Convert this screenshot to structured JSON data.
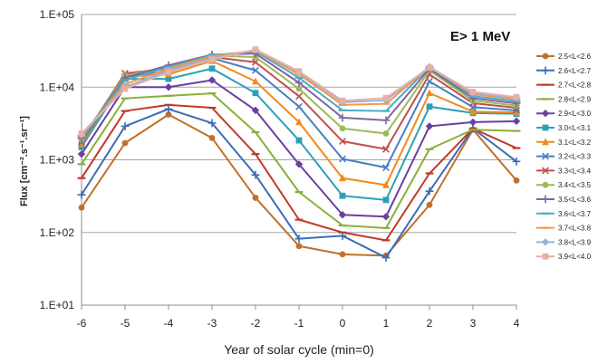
{
  "chart_data": {
    "type": "line",
    "title": "",
    "annotation": "E> 1 MeV",
    "xlabel": "Year of solar cycle (min=0)",
    "ylabel": "Flux [cm⁻².s⁻¹.sr⁻¹]",
    "x": [
      -6,
      -5,
      -4,
      -3,
      -2,
      -1,
      0,
      1,
      2,
      3,
      4
    ],
    "xlim": [
      -6,
      4
    ],
    "ylim": [
      10,
      100000
    ],
    "yscale": "log",
    "ytick_labels": [
      "1.E+01",
      "1.E+02",
      "1.E+03",
      "1.E+04",
      "1.E+05"
    ],
    "xtick_labels": [
      "-6",
      "-5",
      "-4",
      "-3",
      "-2",
      "-1",
      "0",
      "1",
      "2",
      "3",
      "4"
    ],
    "grid": "horizontal",
    "legend_position": "right",
    "series": [
      {
        "name": "2.5<L<2.6",
        "color": "#c0702a",
        "marker": "circle",
        "values": [
          220,
          1700,
          4200,
          2000,
          300,
          65,
          50,
          48,
          240,
          2600,
          520
        ]
      },
      {
        "name": "2.6<L<2.7",
        "color": "#3a6db5",
        "marker": "plus",
        "values": [
          330,
          2900,
          5000,
          3200,
          620,
          82,
          90,
          45,
          370,
          2700,
          950
        ]
      },
      {
        "name": "2.7<L<2.8",
        "color": "#c0392b",
        "marker": "dash",
        "values": [
          560,
          4700,
          5700,
          5200,
          1200,
          150,
          100,
          78,
          650,
          2700,
          1450
        ]
      },
      {
        "name": "2.8<L<2.9",
        "color": "#8bb03a",
        "marker": "dash",
        "values": [
          870,
          7000,
          7600,
          8200,
          2400,
          360,
          125,
          115,
          1400,
          2600,
          2500
        ]
      },
      {
        "name": "2.9<L<3.0",
        "color": "#6b3fa0",
        "marker": "diamond",
        "values": [
          1200,
          10000,
          10000,
          12500,
          4800,
          870,
          175,
          165,
          2900,
          3300,
          3400
        ]
      },
      {
        "name": "3.0<L<3.1",
        "color": "#2aa0b8",
        "marker": "square",
        "values": [
          1500,
          13000,
          13000,
          18000,
          8300,
          1850,
          320,
          280,
          5400,
          4400,
          4300
        ]
      },
      {
        "name": "3.1<L<3.2",
        "color": "#f08a1c",
        "marker": "triangle",
        "values": [
          1650,
          14000,
          15000,
          23000,
          12000,
          3300,
          560,
          450,
          8300,
          4600,
          4500
        ]
      },
      {
        "name": "3.2<L<3.3",
        "color": "#4a7ec0",
        "marker": "x",
        "values": [
          1750,
          14000,
          16500,
          25000,
          17000,
          5400,
          1030,
          780,
          12000,
          5300,
          4800
        ]
      },
      {
        "name": "3.3<L<3.4",
        "color": "#c0504d",
        "marker": "x",
        "values": [
          1850,
          15500,
          18000,
          26000,
          22000,
          7500,
          1800,
          1400,
          15000,
          6000,
          5200
        ]
      },
      {
        "name": "3.4<L<3.5",
        "color": "#9bbb59",
        "marker": "circle",
        "values": [
          1900,
          14500,
          19000,
          27000,
          26000,
          9500,
          2700,
          2300,
          17000,
          6500,
          5600
        ]
      },
      {
        "name": "3.5<L<3.6",
        "color": "#8064a2",
        "marker": "plus",
        "values": [
          2000,
          13500,
          20000,
          28000,
          29000,
          11500,
          3800,
          3500,
          18000,
          7000,
          6000
        ]
      },
      {
        "name": "3.6<L<3.7",
        "color": "#4bacc6",
        "marker": "dash",
        "values": [
          2100,
          12500,
          19000,
          27500,
          31000,
          13500,
          4800,
          4700,
          19000,
          7500,
          6400
        ]
      },
      {
        "name": "3.7<L<3.8",
        "color": "#f79646",
        "marker": "dash",
        "values": [
          2150,
          11000,
          18000,
          26500,
          32000,
          15000,
          5700,
          5900,
          19000,
          8000,
          6800
        ]
      },
      {
        "name": "3.8<L<3.9",
        "color": "#95b3d7",
        "marker": "diamond",
        "values": [
          2200,
          10000,
          17000,
          25000,
          32500,
          16000,
          6200,
          6600,
          19000,
          8300,
          7100
        ]
      },
      {
        "name": "3.9<L<4.0",
        "color": "#e6b0a8",
        "marker": "square",
        "values": [
          2300,
          9500,
          16000,
          24000,
          33000,
          16500,
          6500,
          7100,
          18500,
          8600,
          7300
        ]
      }
    ]
  }
}
